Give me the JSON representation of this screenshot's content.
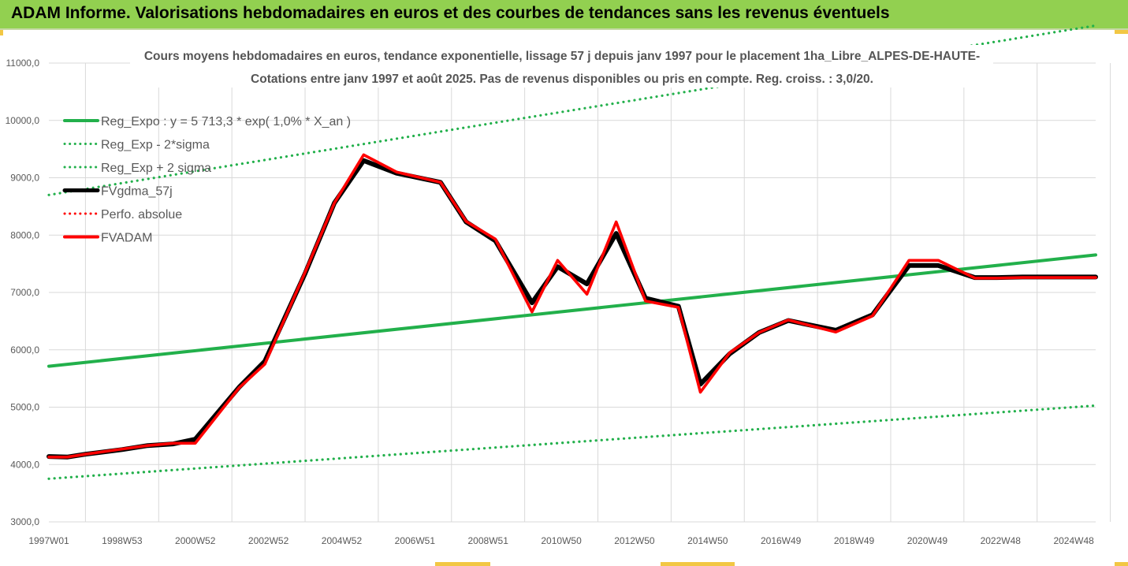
{
  "banner": {
    "title": "ADAM Informe. Valorisations hebdomadaires en euros et des courbes de tendances sans les revenus éventuels",
    "background": "#92d050"
  },
  "chart_data": {
    "type": "line",
    "title_lines": [
      "Cours moyens hebdomadaires en euros, tendance exponentielle, lissage 57 j depuis janv 1997 pour le placement 1ha_Libre_ALPES-DE-HAUTE-",
      "Cotations entre janv 1997 et août 2025.  Pas de revenus disponibles ou pris en compte. Reg. croiss. : 3,0/20."
    ],
    "ylim": [
      3000,
      11000
    ],
    "yticks": [
      "3000,0",
      "4000,0",
      "5000,0",
      "6000,0",
      "7000,0",
      "8000,0",
      "9000,0",
      "10000,0",
      "11000,0"
    ],
    "xlim": [
      1997.0,
      2025.6
    ],
    "xticks": [
      {
        "label": "1997W01",
        "x": 1997.0
      },
      {
        "label": "1998W53",
        "x": 1999.0
      },
      {
        "label": "2000W52",
        "x": 2001.0
      },
      {
        "label": "2002W52",
        "x": 2003.0
      },
      {
        "label": "2004W52",
        "x": 2005.0
      },
      {
        "label": "2006W51",
        "x": 2007.0
      },
      {
        "label": "2008W51",
        "x": 2009.0
      },
      {
        "label": "2010W50",
        "x": 2011.0
      },
      {
        "label": "2012W50",
        "x": 2013.0
      },
      {
        "label": "2014W50",
        "x": 2015.0
      },
      {
        "label": "2016W49",
        "x": 2017.0
      },
      {
        "label": "2018W49",
        "x": 2019.0
      },
      {
        "label": "2020W49",
        "x": 2021.0
      },
      {
        "label": "2022W48",
        "x": 2023.0
      },
      {
        "label": "2024W48",
        "x": 2025.0
      }
    ],
    "grid": true,
    "legend_position": "top-left",
    "series": [
      {
        "name": "Reg_Expo : y = 5 713,3 * exp( 1,0% *  X_an )",
        "style": "solid",
        "color": "#22b04b",
        "x": [
          1997.0,
          2025.6
        ],
        "y": [
          5713,
          7654
        ]
      },
      {
        "name": "Reg_Exp - 2*sigma",
        "style": "dotted",
        "color": "#22b04b",
        "x": [
          1997.0,
          2025.6
        ],
        "y": [
          3752,
          5028
        ]
      },
      {
        "name": "Reg_Exp + 2 sigma",
        "style": "dotted",
        "color": "#22b04b",
        "x": [
          1997.0,
          2025.6
        ],
        "y": [
          8700,
          11654
        ]
      },
      {
        "name": "FVgdma_57j",
        "style": "solid",
        "color": "#000000",
        "x": [
          1997.0,
          1997.5,
          1998.0,
          1999.0,
          1999.7,
          2000.4,
          2001.0,
          2002.2,
          2002.9,
          2004.0,
          2004.8,
          2005.6,
          2006.5,
          2007.7,
          2008.4,
          2009.2,
          2010.2,
          2010.9,
          2011.7,
          2012.5,
          2013.3,
          2014.2,
          2014.8,
          2015.6,
          2016.4,
          2017.2,
          2018.5,
          2019.5,
          2020.5,
          2021.3,
          2022.3,
          2022.9,
          2023.6,
          2024.4,
          2025.6
        ],
        "y": [
          4140,
          4130,
          4180,
          4260,
          4330,
          4360,
          4440,
          5350,
          5800,
          7330,
          8560,
          9300,
          9080,
          8920,
          8230,
          7900,
          6820,
          7450,
          7150,
          8030,
          6900,
          6760,
          5400,
          5930,
          6300,
          6510,
          6340,
          6610,
          7470,
          7470,
          7260,
          7260,
          7270,
          7270,
          7270
        ]
      },
      {
        "name": "Perfo. absolue",
        "style": "dotted",
        "color": "#ff0000",
        "x": [],
        "y": []
      },
      {
        "name": "FVADAM",
        "style": "solid",
        "color": "#ff0000",
        "x": [
          1997.0,
          1997.5,
          1998.0,
          1999.0,
          1999.7,
          2000.4,
          2001.0,
          2002.2,
          2002.9,
          2004.0,
          2004.8,
          2005.6,
          2006.5,
          2007.7,
          2008.4,
          2009.2,
          2010.2,
          2010.9,
          2011.7,
          2012.5,
          2013.3,
          2014.2,
          2014.8,
          2015.6,
          2016.4,
          2017.2,
          2018.5,
          2019.5,
          2020.5,
          2021.3,
          2022.3,
          2022.9,
          2023.6,
          2024.4,
          2025.6
        ],
        "y": [
          4130,
          4130,
          4180,
          4270,
          4330,
          4370,
          4370,
          5340,
          5750,
          7350,
          8560,
          9400,
          9100,
          8920,
          8240,
          7930,
          6660,
          7560,
          6970,
          8230,
          6850,
          6740,
          5260,
          5950,
          6300,
          6520,
          6310,
          6590,
          7560,
          7560,
          7250,
          7250,
          7260,
          7260,
          7260
        ]
      }
    ]
  }
}
